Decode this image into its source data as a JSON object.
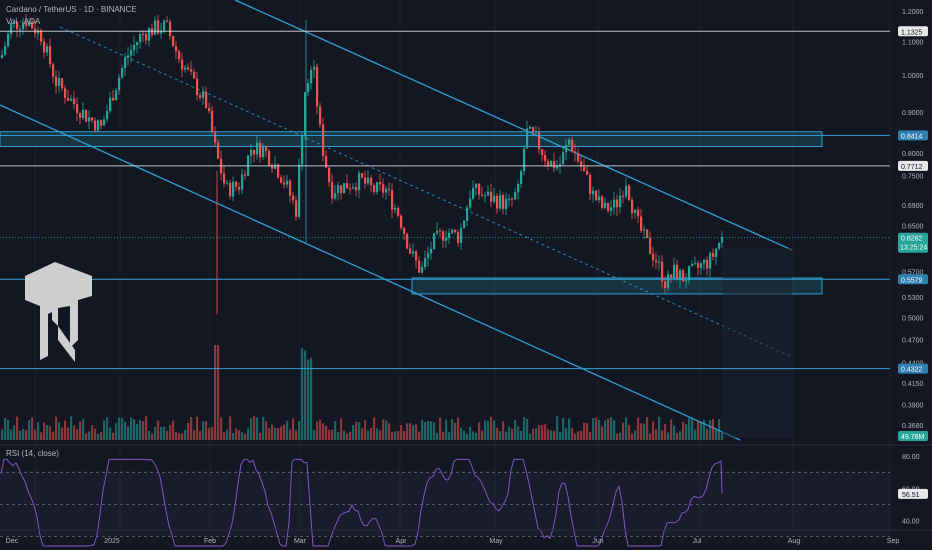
{
  "header": {
    "symbol": "Cardano / TetherUS · 1D · BINANCE",
    "volume_label": "Vol · ADA",
    "rsi_label": "RSI (14, close)"
  },
  "colors": {
    "background": "#131722",
    "up": "#26a69a",
    "down": "#ef5350",
    "channel": "#2fa0d8",
    "zone_fill": "#1f6a78",
    "level_line": "#d1d4dc",
    "rsi_line": "#7e57c2"
  },
  "chart_data": {
    "type": "candlestick",
    "y_scale": "log",
    "x_ticks": [
      "Dec",
      "2025",
      "Feb",
      "Mar",
      "Apr",
      "May",
      "Jun",
      "Jul",
      "Aug",
      "Sep"
    ],
    "y_ticks": [
      "1.2000",
      "1.1000",
      "1.0000",
      "0.9000",
      "0.8000",
      "0.7500",
      "0.6900",
      "0.6500",
      "0.5700",
      "0.5300",
      "0.5000",
      "0.4700",
      "0.4400",
      "0.4150",
      "0.3900",
      "0.3680"
    ],
    "y_ticks_values": [
      1.2,
      1.1,
      1.0,
      0.9,
      0.8,
      0.75,
      0.69,
      0.65,
      0.57,
      0.53,
      0.5,
      0.47,
      0.44,
      0.415,
      0.39,
      0.368
    ],
    "price_badges": [
      {
        "label": "1.1325",
        "value": 1.1325,
        "style": "white"
      },
      {
        "label": "0.8414",
        "value": 0.8414,
        "style": "blue"
      },
      {
        "label": "0.7712",
        "value": 0.7712,
        "style": "white"
      },
      {
        "label": "0.6282",
        "value": 0.6282,
        "style": "teal",
        "countdown": "13:25:24"
      },
      {
        "label": "0.5579",
        "value": 0.5579,
        "style": "blue"
      },
      {
        "label": "0.4322",
        "value": 0.4322,
        "style": "blue"
      },
      {
        "label": "49.78M",
        "value": 49.78,
        "style": "teal-volume"
      }
    ],
    "horizontal_levels": [
      1.1325,
      0.8414,
      0.7712,
      0.5579,
      0.4322
    ],
    "zones": [
      {
        "top": 0.85,
        "bottom": 0.815
      },
      {
        "top": 0.56,
        "bottom": 0.535
      }
    ],
    "rsi": {
      "ticks": [
        "80.00",
        "60.00",
        "40.00"
      ],
      "tick_values": [
        80,
        60,
        40
      ],
      "current": "56.51",
      "current_value": 56.51,
      "upper": 70,
      "lower": 30
    },
    "price_path": [
      [
        0,
        1.05
      ],
      [
        10,
        1.15
      ],
      [
        25,
        1.17
      ],
      [
        40,
        1.12
      ],
      [
        55,
        0.98
      ],
      [
        70,
        0.93
      ],
      [
        85,
        0.89
      ],
      [
        100,
        0.86
      ],
      [
        112,
        0.95
      ],
      [
        125,
        1.05
      ],
      [
        140,
        1.12
      ],
      [
        152,
        1.14
      ],
      [
        165,
        1.15
      ],
      [
        178,
        1.05
      ],
      [
        192,
        0.98
      ],
      [
        205,
        0.92
      ],
      [
        215,
        0.8
      ],
      [
        225,
        0.72
      ],
      [
        238,
        0.73
      ],
      [
        250,
        0.81
      ],
      [
        262,
        0.81
      ],
      [
        275,
        0.77
      ],
      [
        285,
        0.73
      ],
      [
        295,
        0.68
      ],
      [
        305,
        1.0
      ],
      [
        313,
        1.0
      ],
      [
        320,
        0.83
      ],
      [
        330,
        0.72
      ],
      [
        345,
        0.73
      ],
      [
        360,
        0.74
      ],
      [
        372,
        0.72
      ],
      [
        385,
        0.72
      ],
      [
        398,
        0.67
      ],
      [
        410,
        0.6
      ],
      [
        420,
        0.57
      ],
      [
        432,
        0.62
      ],
      [
        445,
        0.64
      ],
      [
        458,
        0.63
      ],
      [
        470,
        0.72
      ],
      [
        482,
        0.71
      ],
      [
        495,
        0.7
      ],
      [
        508,
        0.69
      ],
      [
        518,
        0.72
      ],
      [
        525,
        0.85
      ],
      [
        535,
        0.83
      ],
      [
        547,
        0.78
      ],
      [
        558,
        0.77
      ],
      [
        568,
        0.83
      ],
      [
        580,
        0.77
      ],
      [
        592,
        0.71
      ],
      [
        603,
        0.68
      ],
      [
        615,
        0.69
      ],
      [
        625,
        0.74
      ],
      [
        635,
        0.66
      ],
      [
        645,
        0.62
      ],
      [
        655,
        0.59
      ],
      [
        665,
        0.55
      ],
      [
        673,
        0.57
      ],
      [
        682,
        0.56
      ],
      [
        692,
        0.57
      ],
      [
        700,
        0.58
      ],
      [
        710,
        0.59
      ],
      [
        718,
        0.62
      ],
      [
        722,
        0.628
      ]
    ]
  }
}
